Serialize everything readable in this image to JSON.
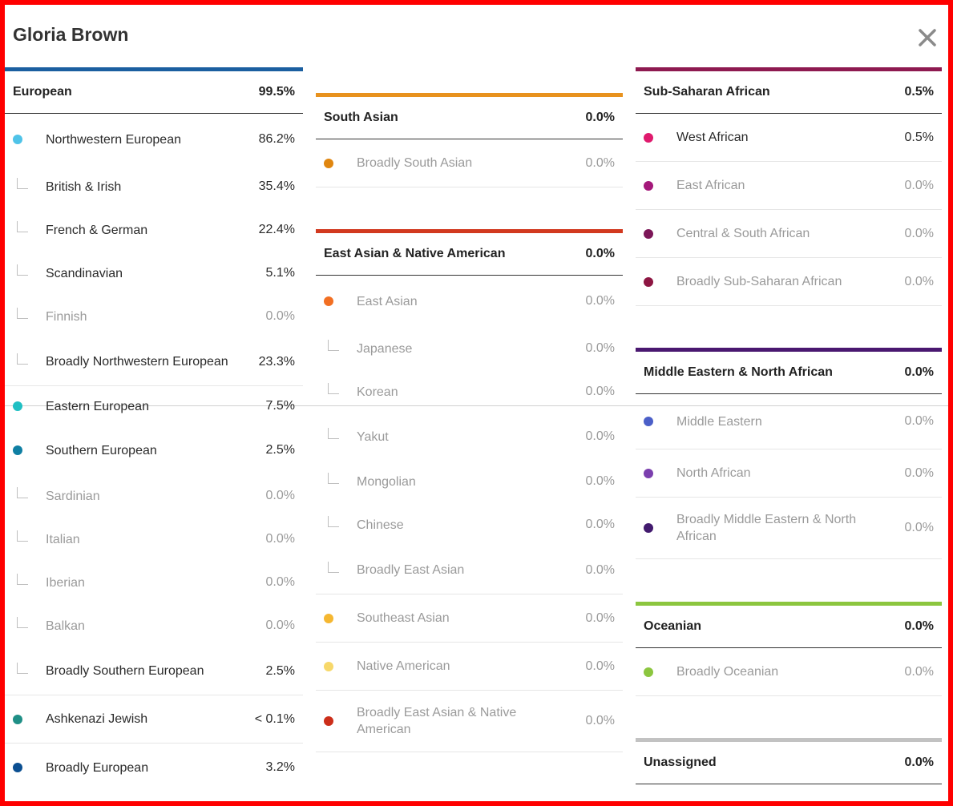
{
  "header": {
    "title": "Gloria Brown"
  },
  "groups": {
    "european": {
      "name": "European",
      "total": "99.5%",
      "color": "#1b5fa0",
      "rows": [
        {
          "label": "Northwestern European",
          "value": "86.2%",
          "dot": "#4fc3e8",
          "dim": false
        },
        {
          "label": "British & Irish",
          "value": "35.4%",
          "dim": false
        },
        {
          "label": "French & German",
          "value": "22.4%",
          "dim": false
        },
        {
          "label": "Scandinavian",
          "value": "5.1%",
          "dim": false
        },
        {
          "label": "Finnish",
          "value": "0.0%",
          "dim": true
        },
        {
          "label": "Broadly Northwestern European",
          "value": "23.3%",
          "dim": false
        },
        {
          "label": "Eastern European",
          "value": "7.5%",
          "dot": "#1fbfc3",
          "dim": false
        },
        {
          "label": "Southern European",
          "value": "2.5%",
          "dot": "#0f7fa3",
          "dim": false
        },
        {
          "label": "Sardinian",
          "value": "0.0%",
          "dim": true
        },
        {
          "label": "Italian",
          "value": "0.0%",
          "dim": true
        },
        {
          "label": "Iberian",
          "value": "0.0%",
          "dim": true
        },
        {
          "label": "Balkan",
          "value": "0.0%",
          "dim": true
        },
        {
          "label": "Broadly Southern European",
          "value": "2.5%",
          "dim": false
        },
        {
          "label": "Ashkenazi Jewish",
          "value": "< 0.1%",
          "dot": "#1f8f86",
          "dim": false
        },
        {
          "label": "Broadly European",
          "value": "3.2%",
          "dot": "#0b4f91",
          "dim": false
        }
      ]
    },
    "south_asian": {
      "name": "South Asian",
      "total": "0.0%",
      "color": "#e8921e",
      "rows": [
        {
          "label": "Broadly South Asian",
          "value": "0.0%",
          "dot": "#e0860f",
          "dim": true
        }
      ]
    },
    "east_asian": {
      "name": "East Asian & Native American",
      "total": "0.0%",
      "color": "#d2391f",
      "rows": [
        {
          "label": "East Asian",
          "value": "0.0%",
          "dot": "#f26f22",
          "dim": true
        },
        {
          "label": "Japanese",
          "value": "0.0%",
          "dim": true
        },
        {
          "label": "Korean",
          "value": "0.0%",
          "dim": true
        },
        {
          "label": "Yakut",
          "value": "0.0%",
          "dim": true
        },
        {
          "label": "Mongolian",
          "value": "0.0%",
          "dim": true
        },
        {
          "label": "Chinese",
          "value": "0.0%",
          "dim": true
        },
        {
          "label": "Broadly East Asian",
          "value": "0.0%",
          "dim": true
        },
        {
          "label": "Southeast Asian",
          "value": "0.0%",
          "dot": "#f5b731",
          "dim": true
        },
        {
          "label": "Native American",
          "value": "0.0%",
          "dot": "#f7d86a",
          "dim": true
        },
        {
          "label": "Broadly East Asian & Native American",
          "value": "0.0%",
          "dot": "#cc2e1a",
          "dim": true
        }
      ]
    },
    "sub_saharan": {
      "name": "Sub-Saharan African",
      "total": "0.5%",
      "color": "#8e1a50",
      "rows": [
        {
          "label": "West African",
          "value": "0.5%",
          "dot": "#df1a6d",
          "dim": false
        },
        {
          "label": "East African",
          "value": "0.0%",
          "dot": "#a4187a",
          "dim": true
        },
        {
          "label": "Central & South African",
          "value": "0.0%",
          "dot": "#7c1658",
          "dim": true
        },
        {
          "label": "Broadly Sub-Saharan African",
          "value": "0.0%",
          "dot": "#8d1642",
          "dim": true
        }
      ]
    },
    "mena": {
      "name": "Middle Eastern & North African",
      "total": "0.0%",
      "color": "#4a1870",
      "rows": [
        {
          "label": "Middle Eastern",
          "value": "0.0%",
          "dot": "#4b5fc8",
          "dim": true
        },
        {
          "label": "North African",
          "value": "0.0%",
          "dot": "#7b3fae",
          "dim": true
        },
        {
          "label": "Broadly Middle Eastern & North African",
          "value": "0.0%",
          "dot": "#421a6e",
          "dim": true
        }
      ]
    },
    "oceanian": {
      "name": "Oceanian",
      "total": "0.0%",
      "color": "#8cc63f",
      "rows": [
        {
          "label": "Broadly Oceanian",
          "value": "0.0%",
          "dot": "#8cc63f",
          "dim": true
        }
      ]
    },
    "unassigned": {
      "name": "Unassigned",
      "total": "0.0%",
      "color": "#c2c2c2",
      "rows": []
    }
  }
}
